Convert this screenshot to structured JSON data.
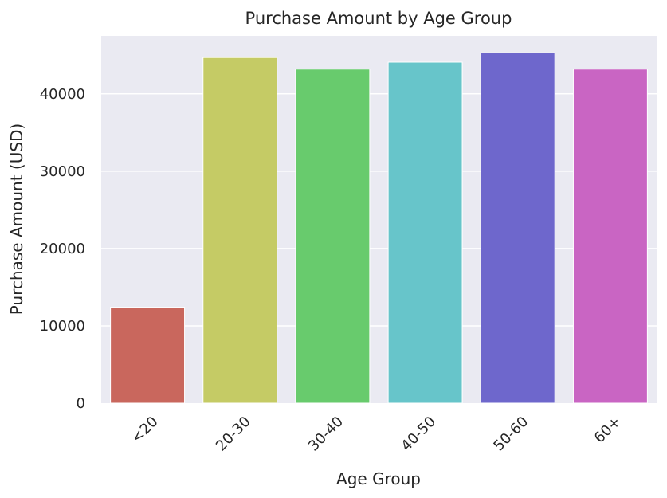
{
  "chart_data": {
    "type": "bar",
    "title": "Purchase Amount by Age Group",
    "xlabel": "Age Group",
    "ylabel": "Purchase Amount (USD)",
    "categories": [
      "<20",
      "20-30",
      "30-40",
      "40-50",
      "50-60",
      "60+"
    ],
    "values": [
      12400,
      44700,
      43200,
      44100,
      45300,
      43200
    ],
    "colors": [
      "#c9675d",
      "#c5cb65",
      "#68cb6d",
      "#67c5ca",
      "#6e67cc",
      "#c965c3"
    ],
    "ylim": [
      0,
      47500
    ],
    "yticks": [
      0,
      10000,
      20000,
      30000,
      40000
    ],
    "ytick_labels": [
      "0",
      "10000",
      "20000",
      "30000",
      "40000"
    ],
    "grid": true,
    "background_color": "#eaeaf2"
  }
}
